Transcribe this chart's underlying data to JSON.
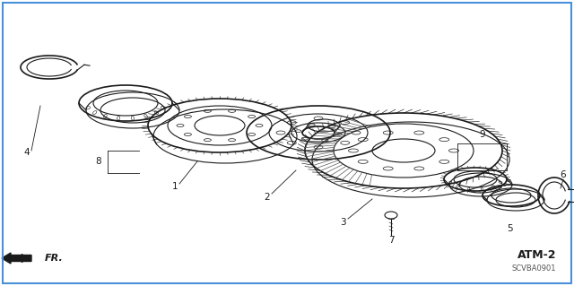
{
  "background_color": "#ffffff",
  "border_color": "#4a90d9",
  "diagram_code": "SCVBA0901",
  "diagram_id": "ATM-2",
  "line_color": "#1a1a1a",
  "mid_color": "#555555"
}
